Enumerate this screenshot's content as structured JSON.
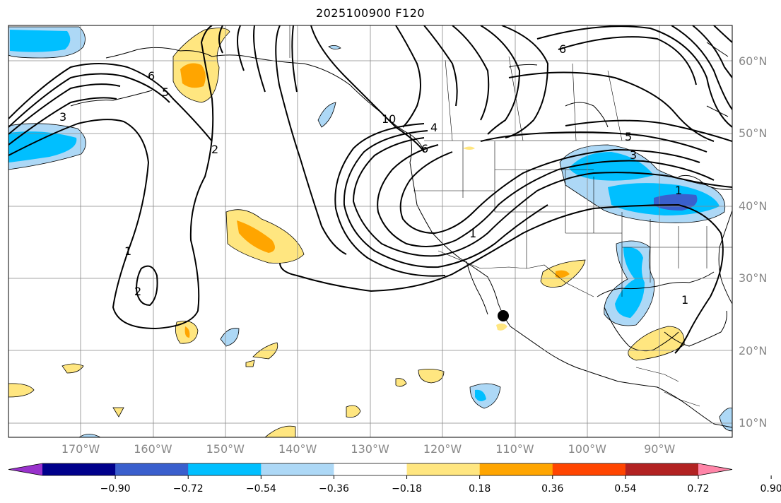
{
  "title": "2025100900 F120",
  "lat_labels": [
    {
      "text": "60°N",
      "lat": 60
    },
    {
      "text": "50°N",
      "lat": 50
    },
    {
      "text": "40°N",
      "lat": 40
    },
    {
      "text": "30°N",
      "lat": 30
    },
    {
      "text": "20°N",
      "lat": 20
    },
    {
      "text": "10°N",
      "lat": 10
    }
  ],
  "lon_labels": [
    {
      "text": "170°W",
      "lon": -170
    },
    {
      "text": "160°W",
      "lon": -160
    },
    {
      "text": "150°W",
      "lon": -150
    },
    {
      "text": "140°W",
      "lon": -140
    },
    {
      "text": "130°W",
      "lon": -130
    },
    {
      "text": "120°W",
      "lon": -120
    },
    {
      "text": "110°W",
      "lon": -110
    },
    {
      "text": "100°W",
      "lon": -100
    },
    {
      "text": "90°W",
      "lon": -90
    }
  ],
  "colorbar": {
    "colors": [
      "#9932cc",
      "#00008b",
      "#3a5fcd",
      "#00bfff",
      "#add8f6",
      "#ffffff",
      "#ffe680",
      "#ffa500",
      "#ff4500",
      "#b22222",
      "#ff85a8"
    ],
    "ticks": [
      "−0.90",
      "−0.72",
      "−0.54",
      "−0.36",
      "−0.18",
      "0.18",
      "0.36",
      "0.54",
      "0.72",
      "0.90"
    ],
    "extend": "both"
  },
  "contour_labels": [
    {
      "text": "6"
    },
    {
      "text": "5"
    },
    {
      "text": "3"
    },
    {
      "text": "2"
    },
    {
      "text": "1"
    },
    {
      "text": "2"
    },
    {
      "text": "4"
    },
    {
      "text": "6"
    },
    {
      "text": "10"
    },
    {
      "text": "1"
    },
    {
      "text": "6"
    },
    {
      "text": "5"
    },
    {
      "text": "3"
    },
    {
      "text": "1"
    },
    {
      "text": "1"
    }
  ],
  "marker": {
    "label": "storm-center",
    "color": "#000000"
  }
}
